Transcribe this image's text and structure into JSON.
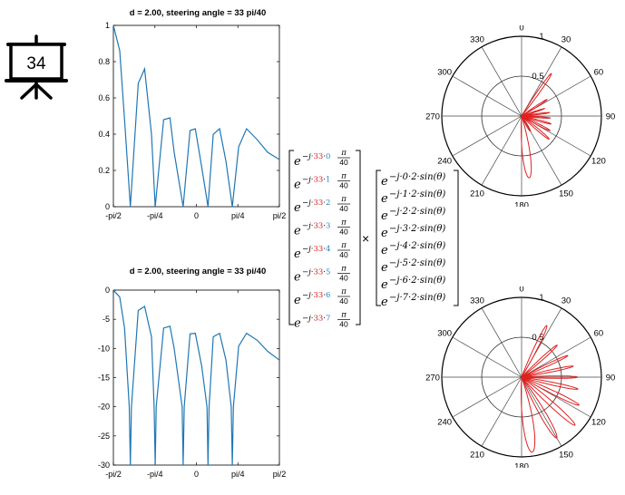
{
  "slide": {
    "number": "34"
  },
  "top_plot": {
    "title": "d = 2.00, steering angle  = 33 pi/40",
    "yticks": [
      "1",
      "0.8",
      "0.6",
      "0.4",
      "0.2",
      "0"
    ],
    "xticks": [
      "-pi/2",
      "-pi/4",
      "0",
      "pi/4",
      "pi/2"
    ]
  },
  "bottom_plot": {
    "title": "d = 2.00, steering angle  = 33 pi/40",
    "yticks": [
      "0",
      "-5",
      "-10",
      "-15",
      "-20",
      "-25",
      "-30"
    ],
    "xticks": [
      "-pi/2",
      "-pi/4",
      "0",
      "pi/4",
      "pi/2"
    ]
  },
  "polar": {
    "angle_labels": [
      "90",
      "60",
      "30",
      "0",
      "330",
      "300",
      "270",
      "240",
      "210",
      "180",
      "150",
      "120"
    ],
    "radius_labels": [
      "1",
      "0.5"
    ]
  },
  "equation": {
    "base": "e",
    "left_exp_prefix": "−j·",
    "steer": "33",
    "dot": "·",
    "indices": [
      "0",
      "1",
      "2",
      "3",
      "4",
      "5",
      "6",
      "7"
    ],
    "frac_num": "π",
    "frac_den": "40",
    "times": "×",
    "right_exps": [
      "−j·0·2·sin(θ)",
      "−j·1·2·sin(θ)",
      "−j·2·2·sin(θ)",
      "−j·3·2·sin(θ)",
      "−j·4·2·sin(θ)",
      "−j·5·2·sin(θ)",
      "−j·6·2·sin(θ)",
      "−j·7·2·sin(θ)"
    ]
  },
  "chart_data": [
    {
      "type": "line",
      "title": "d = 2.00, steering angle  = 33 pi/40",
      "x_ticks": [
        "-pi/2",
        "-pi/4",
        "0",
        "pi/4",
        "pi/2"
      ],
      "xlim": [
        -1.5708,
        1.5708
      ],
      "ylim": [
        0,
        1
      ],
      "y_ticks": [
        0,
        0.2,
        0.4,
        0.6,
        0.8,
        1
      ],
      "grid": false,
      "color": "#1f77b4",
      "x": [
        -1.5708,
        -1.45,
        -1.36,
        -1.25,
        -1.1,
        -0.98,
        -0.85,
        -0.78,
        -0.62,
        -0.5,
        -0.42,
        -0.25,
        -0.12,
        -0.02,
        0.1,
        0.22,
        0.32,
        0.44,
        0.56,
        0.68,
        0.8,
        0.95,
        1.15,
        1.35,
        1.5708
      ],
      "y": [
        1.0,
        0.86,
        0.48,
        0.0,
        0.68,
        0.76,
        0.4,
        0.0,
        0.48,
        0.49,
        0.3,
        0.0,
        0.42,
        0.43,
        0.22,
        0.0,
        0.4,
        0.43,
        0.25,
        0.0,
        0.33,
        0.43,
        0.37,
        0.3,
        0.26
      ]
    },
    {
      "type": "line",
      "title": "d = 2.00, steering angle  = 33 pi/40",
      "x_ticks": [
        "-pi/2",
        "-pi/4",
        "0",
        "pi/4",
        "pi/2"
      ],
      "xlim": [
        -1.5708,
        1.5708
      ],
      "ylim": [
        -30,
        0
      ],
      "y_ticks": [
        0,
        -5,
        -10,
        -15,
        -20,
        -25,
        -30
      ],
      "grid": false,
      "color": "#1f77b4",
      "x": [
        -1.5708,
        -1.45,
        -1.36,
        -1.27,
        -1.25,
        -1.23,
        -1.1,
        -0.98,
        -0.85,
        -0.8,
        -0.78,
        -0.76,
        -0.62,
        -0.5,
        -0.42,
        -0.27,
        -0.25,
        -0.23,
        -0.12,
        -0.02,
        0.1,
        0.2,
        0.22,
        0.24,
        0.32,
        0.44,
        0.56,
        0.66,
        0.68,
        0.7,
        0.8,
        0.95,
        1.15,
        1.35,
        1.5708
      ],
      "y": [
        0,
        -1.2,
        -6.5,
        -20,
        -30,
        -20,
        -3.5,
        -2.8,
        -8,
        -20,
        -30,
        -20,
        -6.5,
        -6.2,
        -10,
        -20,
        -30,
        -20,
        -7.5,
        -7.4,
        -13,
        -20,
        -30,
        -20,
        -8,
        -7.4,
        -12,
        -20,
        -30,
        -20,
        -9.6,
        -7.4,
        -8.6,
        -10.5,
        -12
      ]
    },
    {
      "type": "polar",
      "angles_deg": [
        0,
        30,
        60,
        90,
        120,
        150,
        180,
        210,
        240,
        270,
        300,
        330
      ],
      "r_ticks": [
        0.5,
        1
      ],
      "color": "#e02020",
      "lobes": [
        {
          "center_deg": 277,
          "peak": 0.78,
          "width_deg": 20
        },
        {
          "center_deg": 300,
          "peak": 0.22,
          "width_deg": 13
        },
        {
          "center_deg": 320,
          "peak": 0.45,
          "width_deg": 9
        },
        {
          "center_deg": 333,
          "peak": 0.4,
          "width_deg": 8
        },
        {
          "center_deg": 345,
          "peak": 0.38,
          "width_deg": 7
        },
        {
          "center_deg": 356,
          "peak": 0.36,
          "width_deg": 6
        },
        {
          "center_deg": 7,
          "peak": 0.35,
          "width_deg": 6
        },
        {
          "center_deg": 18,
          "peak": 0.3,
          "width_deg": 6
        },
        {
          "center_deg": 33,
          "peak": 0.38,
          "width_deg": 7
        },
        {
          "center_deg": 55,
          "peak": 0.65,
          "width_deg": 8
        }
      ]
    },
    {
      "type": "polar",
      "angles_deg": [
        0,
        30,
        60,
        90,
        120,
        150,
        180,
        210,
        240,
        270,
        300,
        330
      ],
      "r_ticks": [
        0.5,
        1
      ],
      "color": "#e02020",
      "lobes": [
        {
          "center_deg": 278,
          "peak": 0.95,
          "width_deg": 22
        },
        {
          "center_deg": 300,
          "peak": 0.88,
          "width_deg": 14
        },
        {
          "center_deg": 318,
          "peak": 0.9,
          "width_deg": 11
        },
        {
          "center_deg": 334,
          "peak": 0.8,
          "width_deg": 9
        },
        {
          "center_deg": 348,
          "peak": 0.72,
          "width_deg": 8
        },
        {
          "center_deg": 360,
          "peak": 0.7,
          "width_deg": 7
        },
        {
          "center_deg": 12,
          "peak": 0.66,
          "width_deg": 7
        },
        {
          "center_deg": 25,
          "peak": 0.64,
          "width_deg": 7
        },
        {
          "center_deg": 42,
          "peak": 0.6,
          "width_deg": 8
        },
        {
          "center_deg": 64,
          "peak": 0.72,
          "width_deg": 10
        }
      ]
    }
  ]
}
